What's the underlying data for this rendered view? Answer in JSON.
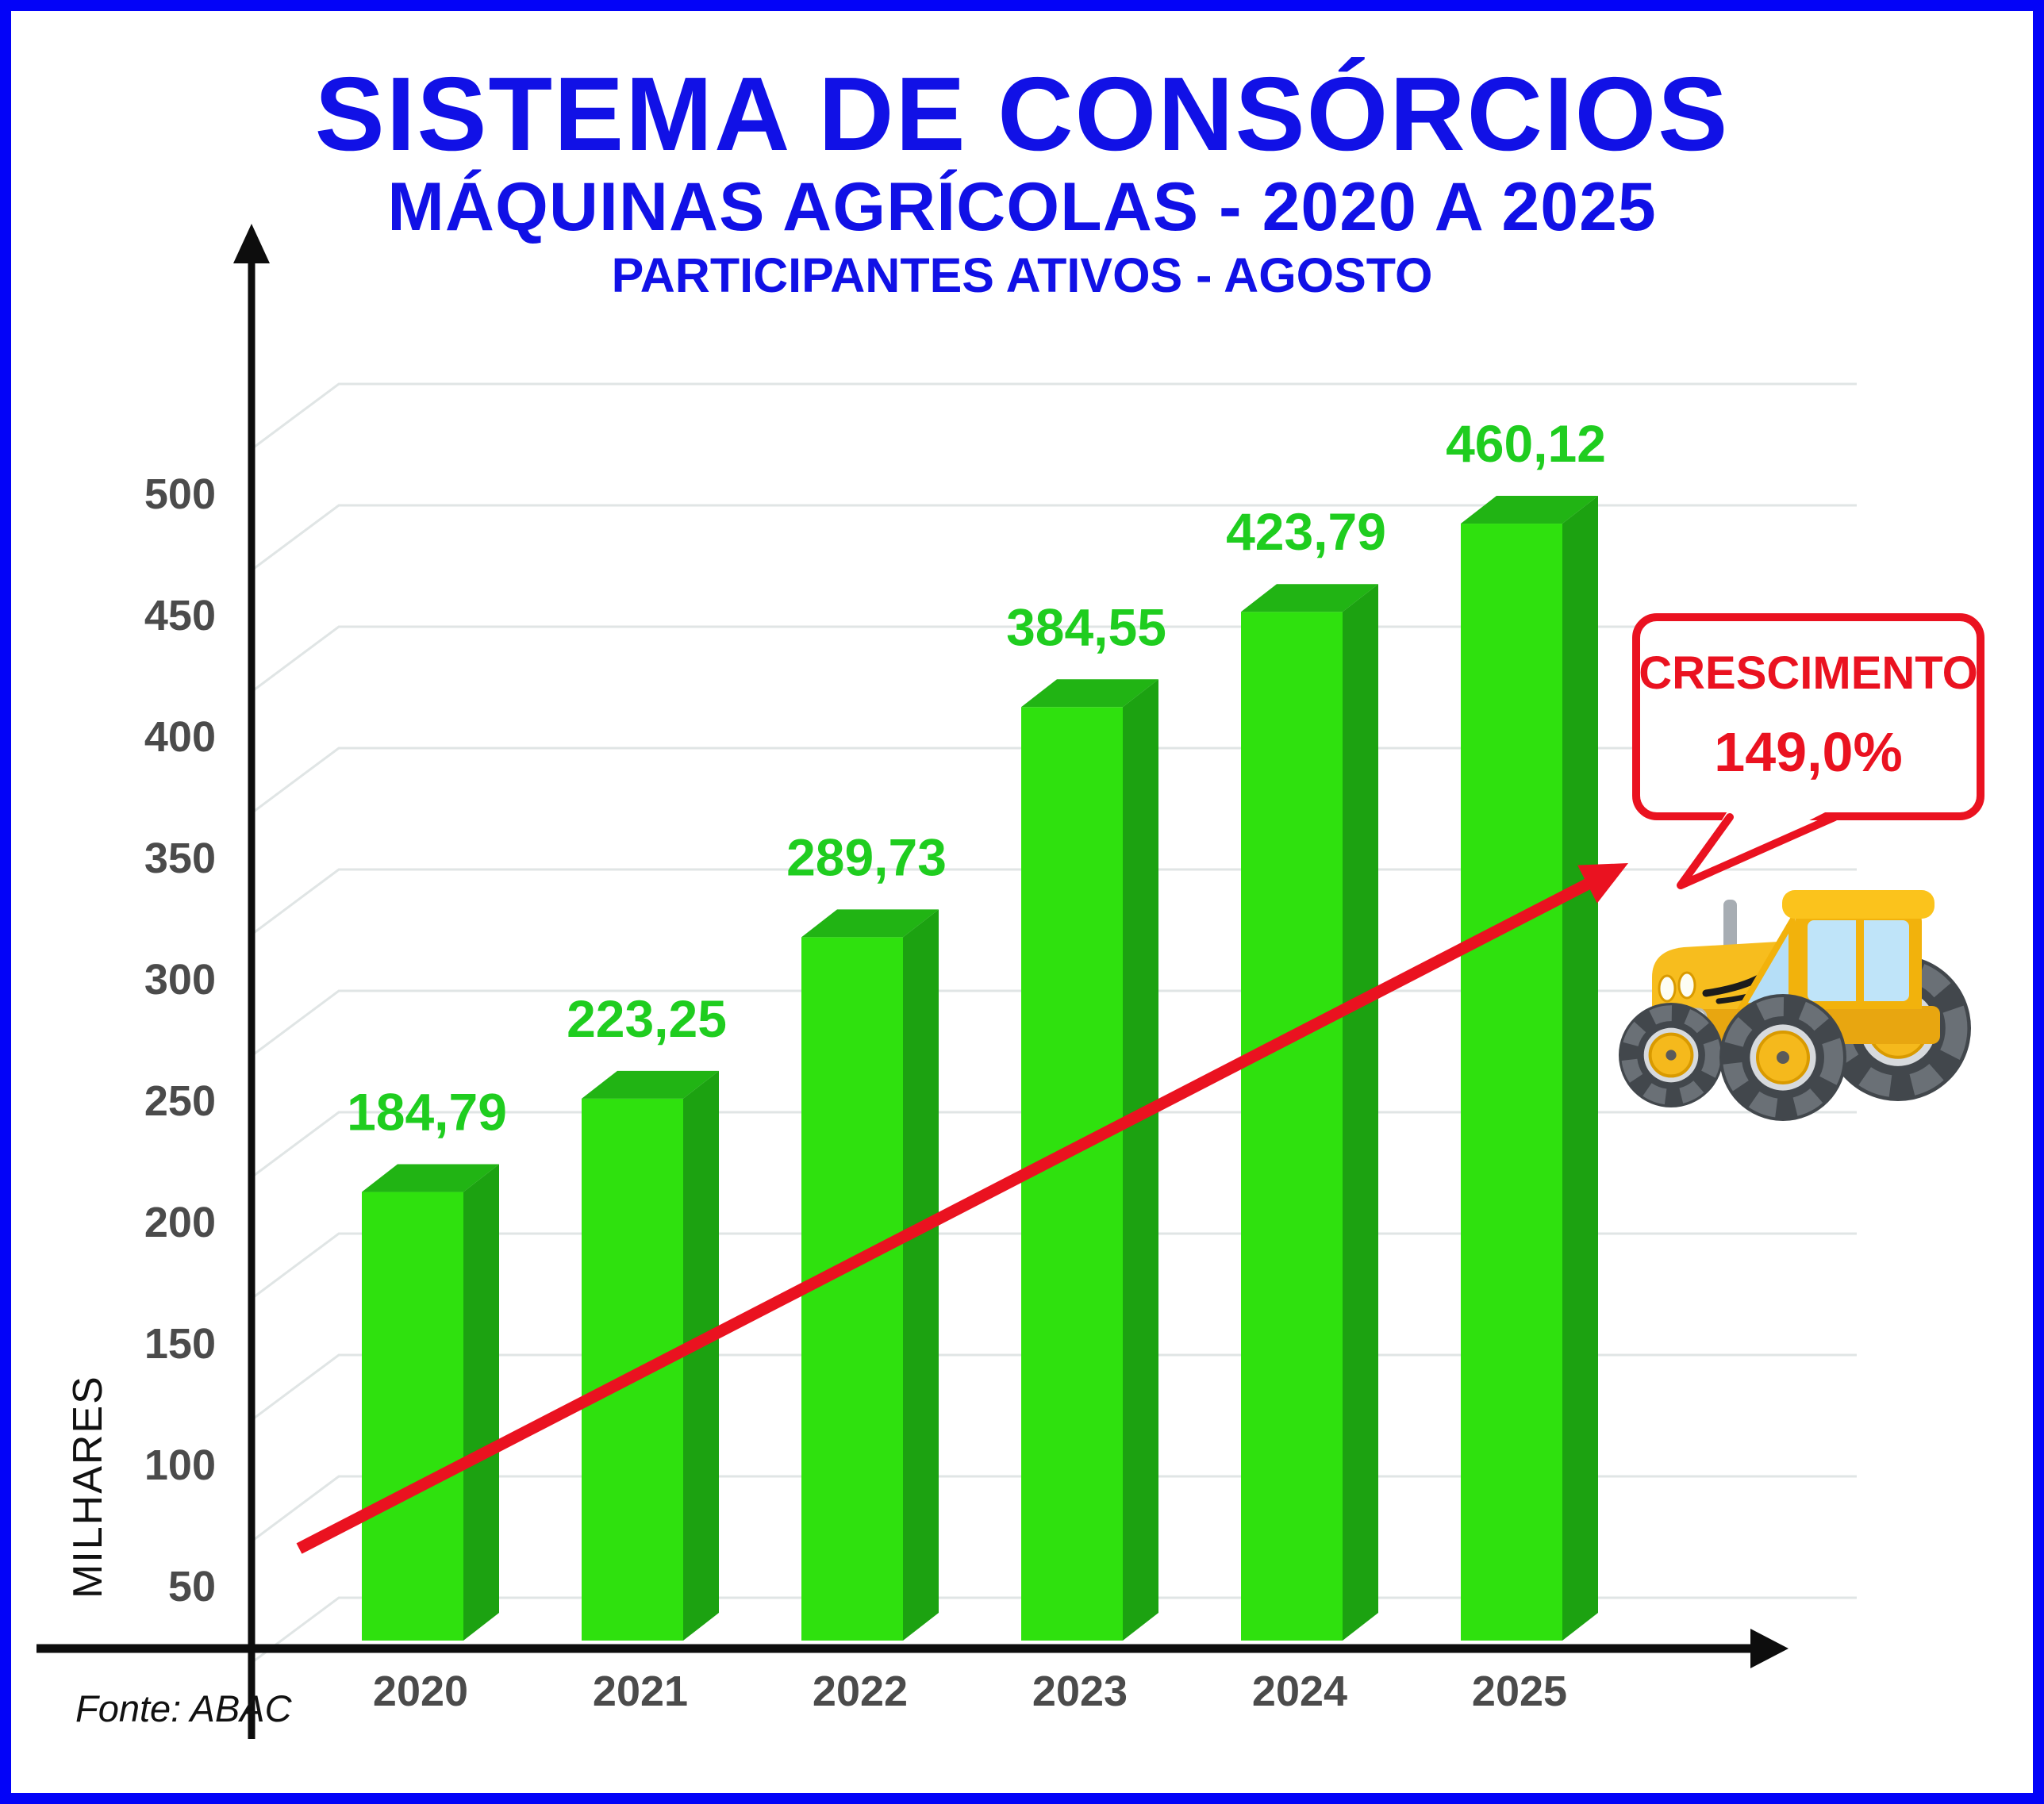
{
  "header": {
    "title": "SISTEMA DE CONSÓRCIOS",
    "subtitle": "MÁQUINAS AGRÍCOLAS - 2020 A 2025",
    "caption": "PARTICIPANTES ATIVOS - AGOSTO"
  },
  "chart_data": {
    "type": "bar",
    "categories": [
      "2020",
      "2021",
      "2022",
      "2023",
      "2024",
      "2025"
    ],
    "values": [
      184.79,
      223.25,
      289.73,
      384.55,
      423.79,
      460.12
    ],
    "value_labels": [
      "184,79",
      "223,25",
      "289,73",
      "384,55",
      "423,79",
      "460,12"
    ],
    "title": "SISTEMA DE CONSÓRCIOS",
    "subtitle": "MÁQUINAS AGRÍCOLAS - 2020 A 2025",
    "caption": "PARTICIPANTES ATIVOS - AGOSTO",
    "xlabel": "",
    "ylabel": "MILHARES",
    "ylim": [
      0,
      550
    ],
    "yticks": [
      50,
      100,
      150,
      200,
      250,
      300,
      350,
      400,
      450,
      500
    ],
    "grid": true,
    "bar_style": "3d-green",
    "legend": "none",
    "annotation": {
      "label": "CRESCIMENTO",
      "value": "149,0%"
    },
    "trend_line": "red ascending arrow from 2020 base to upper right"
  },
  "callout": {
    "line1": "CRESCIMENTO",
    "line2": "149,0%"
  },
  "y_axis_title": "MILHARES",
  "footer": {
    "source": "Fonte: ABAC"
  },
  "icons": {
    "tractor": "tractor-icon"
  },
  "colors": {
    "title_blue": "#1111e6",
    "frame_blue": "#0303f8",
    "bar_front": "#2fe10e",
    "bar_top": "#21b414",
    "bar_side": "#1ca211",
    "value_green": "#1fcd1f",
    "annotation_red": "#ea1220",
    "grid_gray": "#e0e5e5",
    "tick_gray": "#4b4b4b",
    "axis_black": "#0d0d0d"
  }
}
